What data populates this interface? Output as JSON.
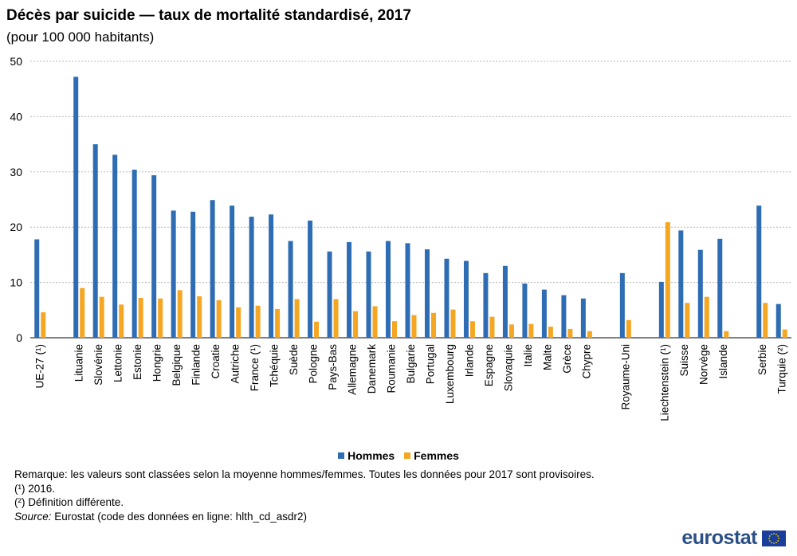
{
  "header": {
    "title": "Décès par suicide — taux de mortalité standardisé, 2017",
    "subtitle": "(pour  100 000 habitants)"
  },
  "chart_data": {
    "type": "bar",
    "ylim": [
      0,
      50
    ],
    "yticks": [
      0,
      10,
      20,
      30,
      40,
      50
    ],
    "grid": true,
    "legend_position": "bottom",
    "categories": [
      "UE-27 (¹)",
      "",
      "Lituanie",
      "Slovénie",
      "Lettonie",
      "Estonie",
      "Hongrie",
      "Belgique",
      "Finlande",
      "Croatie",
      "Autriche",
      "France (¹)",
      "Tchéquie",
      "Suède",
      "Pologne",
      "Pays-Bas",
      "Allemagne",
      "Danemark",
      "Roumanie",
      "Bulgarie",
      "Portugal",
      "Luxembourg",
      "Irlande",
      "Espagne",
      "Slovaquie",
      "Italie",
      "Malte",
      "Grèce",
      "Chypre",
      "",
      "Royaume-Uni",
      "",
      "Liechtenstein (¹)",
      "Suisse",
      "Norvège",
      "Islande",
      "",
      "Serbie",
      "Turquie (²)"
    ],
    "series": [
      {
        "name": "Hommes",
        "color": "#2e6db4",
        "values": [
          17.8,
          null,
          47.2,
          35.0,
          33.1,
          30.4,
          29.4,
          23.0,
          22.8,
          24.9,
          23.9,
          21.9,
          22.3,
          17.5,
          21.2,
          15.6,
          17.3,
          15.6,
          17.5,
          17.1,
          16.0,
          14.3,
          13.9,
          11.7,
          13.0,
          9.8,
          8.7,
          7.7,
          7.1,
          null,
          11.7,
          null,
          10.1,
          19.4,
          15.9,
          17.9,
          null,
          23.9,
          6.1
        ]
      },
      {
        "name": "Femmes",
        "color": "#f5a623",
        "values": [
          4.6,
          null,
          9.0,
          7.4,
          6.0,
          7.2,
          7.1,
          8.6,
          7.5,
          6.8,
          5.5,
          5.8,
          5.2,
          7.0,
          2.9,
          7.0,
          4.8,
          5.7,
          3.0,
          4.1,
          4.5,
          5.1,
          3.0,
          3.8,
          2.4,
          2.5,
          2.0,
          1.6,
          1.2,
          null,
          3.2,
          null,
          20.9,
          6.3,
          7.4,
          1.2,
          null,
          6.3,
          1.5
        ]
      }
    ]
  },
  "footer": {
    "remark": "Remarque:  les valeurs  sont classées selon la moyenne  hommes/femmes.  Toutes les données pour 2017 sont provisoires.",
    "note1": "(¹) 2016.",
    "note2": "(²) Définition différente.",
    "source_label": "Source:",
    "source_text": " Eurostat (code des données en ligne:  hlth_cd_asdr2)"
  },
  "logo": {
    "text": "eurostat"
  }
}
